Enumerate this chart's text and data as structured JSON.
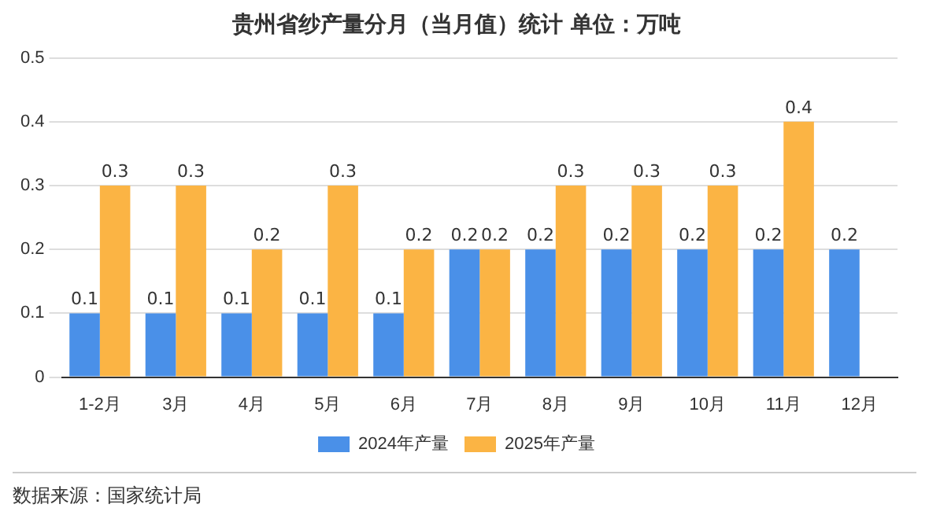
{
  "chart_data": {
    "type": "bar",
    "title": "贵州省纱产量分月（当月值）统计 单位：万吨",
    "categories": [
      "1-2月",
      "3月",
      "4月",
      "5月",
      "6月",
      "7月",
      "8月",
      "9月",
      "10月",
      "11月",
      "12月"
    ],
    "series": [
      {
        "name": "2024年产量",
        "color": "#4a90e8",
        "values": [
          0.1,
          0.1,
          0.1,
          0.1,
          0.1,
          0.2,
          0.2,
          0.2,
          0.2,
          0.2,
          0.2
        ]
      },
      {
        "name": "2025年产量",
        "color": "#fbb444",
        "values": [
          0.3,
          0.3,
          0.2,
          0.3,
          0.2,
          0.2,
          0.3,
          0.3,
          0.3,
          0.4,
          null
        ]
      }
    ],
    "ylim": [
      0,
      0.5
    ],
    "yticks": [
      0,
      0.1,
      0.2,
      0.3,
      0.4,
      0.5
    ],
    "grid": "y",
    "legend": "bottom",
    "data_labels": true,
    "annotations": [
      "数据来源：国家统计局"
    ]
  }
}
